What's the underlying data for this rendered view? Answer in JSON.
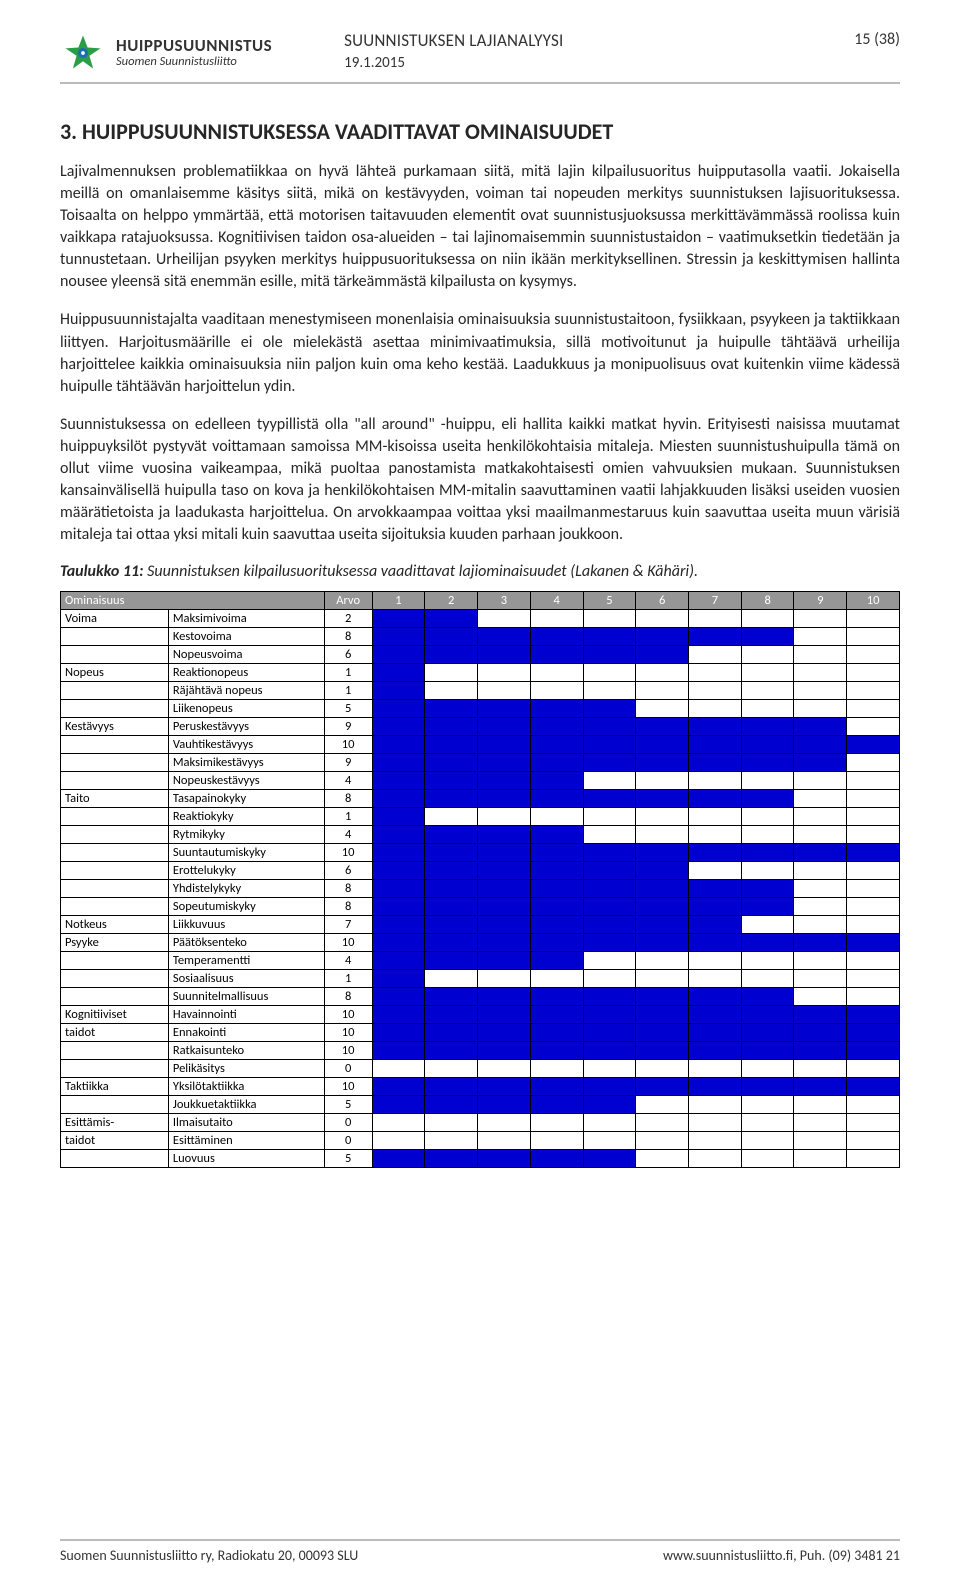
{
  "header": {
    "org_main": "HUIPPUSUUNNISTUS",
    "org_sub": "Suomen Suunnistusliitto",
    "doc_title": "SUUNNISTUKSEN LAJIANALYYSI",
    "page_num": "15 (38)",
    "date": "19.1.2015"
  },
  "section_title": "3. HUIPPUSUUNNISTUKSESSA VAADITTAVAT OMINAISUUDET",
  "paragraphs": [
    "Lajivalmennuksen problematiikkaa on hyvä lähteä purkamaan siitä, mitä lajin kilpailusuoritus huipputasolla vaatii. Jokaisella meillä on omanlaisemme käsitys siitä, mikä on kestävyyden, voiman tai nopeuden merkitys suunnistuksen lajisuorituksessa. Toisaalta on helppo ymmärtää, että motorisen taitavuuden elementit ovat suunnistusjuoksussa merkittävämmässä roolissa kuin vaikkapa ratajuoksussa. Kognitiivisen taidon osa-alueiden – tai lajinomaisemmin suunnistustaidon – vaatimuksetkin tiedetään ja tunnustetaan. Urheilijan psyyken merkitys huippusuorituksessa on niin ikään merkityksellinen. Stressin ja keskittymisen hallinta nousee yleensä sitä enemmän esille, mitä tärkeämmästä kilpailusta on kysymys.",
    "Huippusuunnistajalta vaaditaan menestymiseen monenlaisia ominaisuuksia suunnistustaitoon, fysiikkaan, psyykeen ja taktiikkaan liittyen. Harjoitusmäärille ei ole mielekästä asettaa minimivaatimuksia, sillä motivoitunut ja huipulle tähtäävä urheilija harjoittelee kaikkia ominaisuuksia niin paljon kuin oma keho kestää. Laadukkuus ja monipuolisuus ovat kuitenkin viime kädessä huipulle tähtäävän harjoittelun ydin.",
    "Suunnistuksessa on edelleen tyypillistä olla \"all around\" -huippu, eli hallita kaikki matkat hyvin. Erityisesti naisissa muutamat huippuyksilöt pystyvät voittamaan samoissa MM-kisoissa useita henkilökohtaisia mitaleja. Miesten suunnistushuipulla tämä on ollut viime vuosina vaikeampaa, mikä puoltaa panostamista matkakohtaisesti omien vahvuuksien mukaan. Suunnistuksen kansainvälisellä huipulla taso on kova ja henkilökohtaisen MM-mitalin saavuttaminen vaatii lahjakkuuden lisäksi useiden vuosien määrätietoista ja laadukasta harjoittelua. On arvokkaampaa voittaa yksi maailmanmestaruus kuin saavuttaa useita muun värisiä mitaleja tai ottaa yksi mitali kuin saavuttaa useita sijoituksia kuuden parhaan joukkoon."
  ],
  "table_caption_bold": "Taulukko 11:",
  "table_caption_rest": " Suunnistuksen kilpailusuorituksessa vaadittavat lajiominaisuudet (Lakanen & Kähäri).",
  "table": {
    "headers": {
      "col1": "Ominaisuus",
      "col3": "Arvo",
      "nums": [
        "1",
        "2",
        "3",
        "4",
        "5",
        "6",
        "7",
        "8",
        "9",
        "10"
      ]
    },
    "fill_color": "#0000d0",
    "header_bg": "#969696",
    "rows": [
      {
        "cat": "Voima",
        "sub": "Maksimivoima",
        "val": 2
      },
      {
        "cat": "",
        "sub": "Kestovoima",
        "val": 8
      },
      {
        "cat": "",
        "sub": "Nopeusvoima",
        "val": 6
      },
      {
        "cat": "Nopeus",
        "sub": "Reaktionopeus",
        "val": 1
      },
      {
        "cat": "",
        "sub": "Räjähtävä nopeus",
        "val": 1
      },
      {
        "cat": "",
        "sub": "Liikenopeus",
        "val": 5
      },
      {
        "cat": "Kestävyys",
        "sub": "Peruskestävyys",
        "val": 9
      },
      {
        "cat": "",
        "sub": "Vauhtikestävyys",
        "val": 10
      },
      {
        "cat": "",
        "sub": "Maksimikestävyys",
        "val": 9
      },
      {
        "cat": "",
        "sub": "Nopeuskestävyys",
        "val": 4
      },
      {
        "cat": "Taito",
        "sub": "Tasapainokyky",
        "val": 8
      },
      {
        "cat": "",
        "sub": "Reaktiokyky",
        "val": 1
      },
      {
        "cat": "",
        "sub": "Rytmikyky",
        "val": 4
      },
      {
        "cat": "",
        "sub": "Suuntautumiskyky",
        "val": 10
      },
      {
        "cat": "",
        "sub": "Erottelukyky",
        "val": 6
      },
      {
        "cat": "",
        "sub": "Yhdistelykyky",
        "val": 8
      },
      {
        "cat": "",
        "sub": "Sopeutumiskyky",
        "val": 8
      },
      {
        "cat": "Notkeus",
        "sub": "Liikkuvuus",
        "val": 7
      },
      {
        "cat": "Psyyke",
        "sub": "Päätöksenteko",
        "val": 10
      },
      {
        "cat": "",
        "sub": "Temperamentti",
        "val": 4
      },
      {
        "cat": "",
        "sub": "Sosiaalisuus",
        "val": 1
      },
      {
        "cat": "",
        "sub": "Suunnitelmallisuus",
        "val": 8
      },
      {
        "cat": "Kognitiiviset",
        "sub": "Havainnointi",
        "val": 10
      },
      {
        "cat": "taidot",
        "sub": "Ennakointi",
        "val": 10
      },
      {
        "cat": "",
        "sub": "Ratkaisunteko",
        "val": 10
      },
      {
        "cat": "",
        "sub": "Pelikäsitys",
        "val": 0
      },
      {
        "cat": "Taktiikka",
        "sub": "Yksilötaktiikka",
        "val": 10
      },
      {
        "cat": "",
        "sub": "Joukkuetaktiikka",
        "val": 5
      },
      {
        "cat": "Esittämis-",
        "sub": "Ilmaisutaito",
        "val": 0
      },
      {
        "cat": "taidot",
        "sub": "Esittäminen",
        "val": 0
      },
      {
        "cat": "",
        "sub": "Luovuus",
        "val": 5
      }
    ]
  },
  "footer": {
    "left": "Suomen Suunnistusliitto ry, Radiokatu 20, 00093 SLU",
    "right": "www.suunnistusliitto.fi, Puh. (09) 3481 21"
  }
}
